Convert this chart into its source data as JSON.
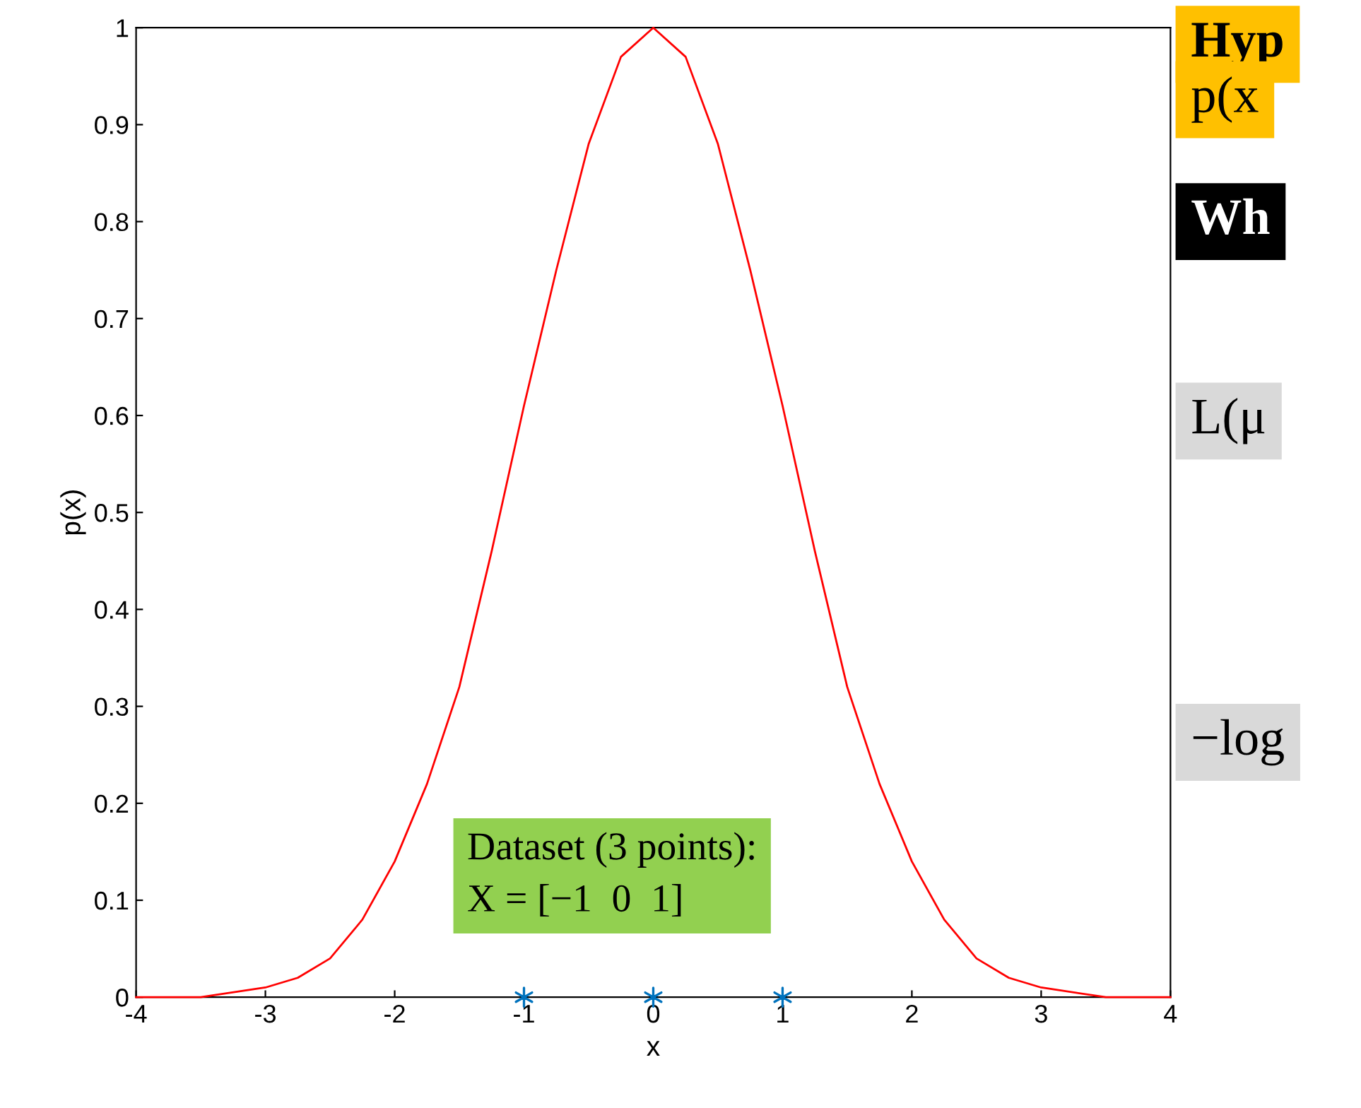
{
  "chart_data": {
    "type": "line",
    "xlabel": "x",
    "ylabel": "p(x)",
    "x": [
      -4,
      -3.5,
      -3,
      -2.75,
      -2.5,
      -2.25,
      -2,
      -1.75,
      -1.5,
      -1.25,
      -1,
      -0.75,
      -0.5,
      -0.25,
      0,
      0.25,
      0.5,
      0.75,
      1,
      1.25,
      1.5,
      1.75,
      2,
      2.25,
      2.5,
      2.75,
      3,
      3.5,
      4
    ],
    "series": [
      {
        "color": "#ff0000",
        "marker": "none",
        "values": [
          0,
          0,
          0.01,
          0.02,
          0.04,
          0.08,
          0.14,
          0.22,
          0.32,
          0.46,
          0.61,
          0.75,
          0.88,
          0.97,
          1,
          0.97,
          0.88,
          0.75,
          0.61,
          0.46,
          0.32,
          0.22,
          0.14,
          0.08,
          0.04,
          0.02,
          0.01,
          0,
          0
        ]
      },
      {
        "type": "scatter",
        "color": "#0072bd",
        "marker": "cross",
        "x": [
          -1,
          0,
          1
        ],
        "values": [
          0,
          0,
          0
        ]
      }
    ],
    "xlim": [
      -4,
      4
    ],
    "ylim": [
      0,
      1
    ],
    "xticks": [
      -4,
      -3,
      -2,
      -1,
      0,
      1,
      2,
      3,
      4
    ],
    "yticks": [
      0,
      0.1,
      0.2,
      0.3,
      0.4,
      0.5,
      0.6,
      0.7,
      0.8,
      0.9,
      1
    ],
    "grid": false,
    "legend": false,
    "annotations": [
      "Dataset (3 points):\nX = [−1  0  1]",
      "Hyp",
      "p(x",
      "Wh",
      "L(μ",
      "−log"
    ]
  }
}
